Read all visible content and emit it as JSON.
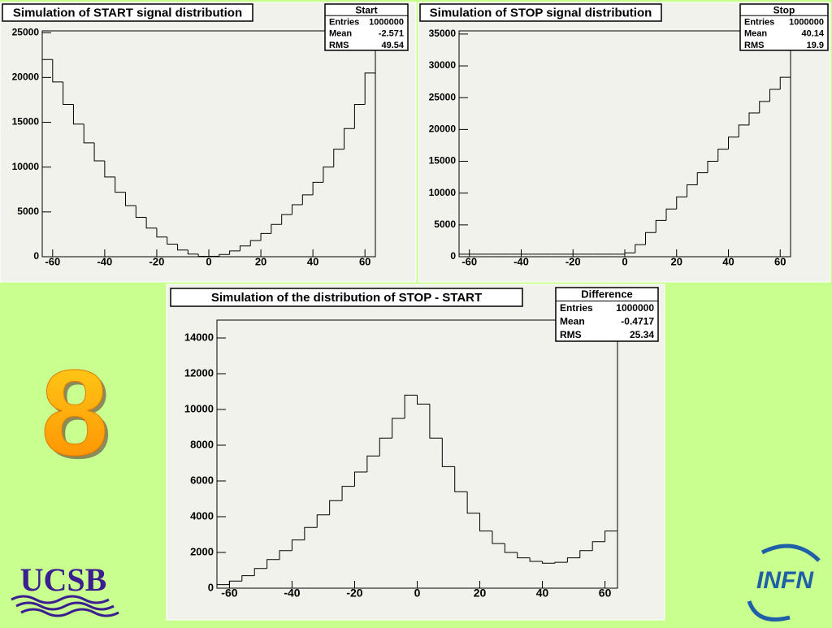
{
  "chart_data": [
    {
      "type": "histogram",
      "title": "Simulation of START signal distribution",
      "stats": {
        "name": "Start",
        "rows": [
          {
            "label": "Entries",
            "value": 1000000
          },
          {
            "label": "Mean",
            "value": -2.571
          },
          {
            "label": "RMS",
            "value": 49.54
          }
        ]
      },
      "bins": [
        -64,
        -60,
        -56,
        -52,
        -48,
        -44,
        -40,
        -36,
        -32,
        -28,
        -24,
        -20,
        -16,
        -12,
        -8,
        -4,
        0,
        4,
        8,
        12,
        16,
        20,
        24,
        28,
        32,
        36,
        40,
        44,
        48,
        52,
        56,
        60,
        64
      ],
      "values": [
        22000,
        19500,
        17000,
        14800,
        12700,
        10700,
        8900,
        7200,
        5700,
        4400,
        3200,
        2200,
        1400,
        750,
        300,
        50,
        50,
        250,
        650,
        1200,
        1800,
        2600,
        3600,
        4700,
        5800,
        6900,
        8300,
        10000,
        12000,
        14300,
        17000,
        20500
      ],
      "color": "#000000",
      "xlim": [
        -64,
        64
      ],
      "xticks": [
        -60,
        -40,
        -20,
        0,
        20,
        40,
        60
      ],
      "ylim": [
        0,
        25200
      ],
      "yticks": [
        0,
        5000,
        10000,
        15000,
        20000,
        25000
      ]
    },
    {
      "type": "histogram",
      "title": "Simulation of STOP signal distribution",
      "stats": {
        "name": "Stop",
        "rows": [
          {
            "label": "Entries",
            "value": 1000000
          },
          {
            "label": "Mean",
            "value": 40.14
          },
          {
            "label": "RMS",
            "value": 19.9
          }
        ]
      },
      "bins": [
        -64,
        -60,
        -56,
        -52,
        -48,
        -44,
        -40,
        -36,
        -32,
        -28,
        -24,
        -20,
        -16,
        -12,
        -8,
        -4,
        0,
        4,
        8,
        12,
        16,
        20,
        24,
        28,
        32,
        36,
        40,
        44,
        48,
        52,
        56,
        60,
        64
      ],
      "values": [
        400,
        400,
        400,
        400,
        400,
        400,
        400,
        400,
        400,
        400,
        400,
        400,
        400,
        400,
        400,
        400,
        600,
        1900,
        3800,
        5700,
        7500,
        9400,
        11300,
        13200,
        15000,
        16900,
        18800,
        20700,
        22600,
        24400,
        26300,
        28200
      ],
      "color": "#000000",
      "xlim": [
        -64,
        64
      ],
      "xticks": [
        -60,
        -40,
        -20,
        0,
        20,
        40,
        60
      ],
      "ylim": [
        0,
        35500
      ],
      "yticks": [
        0,
        5000,
        10000,
        15000,
        20000,
        25000,
        30000,
        35000
      ]
    },
    {
      "type": "histogram",
      "title": "Simulation of the distribution of STOP - START",
      "stats": {
        "name": "Difference",
        "rows": [
          {
            "label": "Entries",
            "value": 1000000
          },
          {
            "label": "Mean",
            "value": -0.4717
          },
          {
            "label": "RMS",
            "value": 25.34
          }
        ]
      },
      "bins": [
        -64,
        -60,
        -56,
        -52,
        -48,
        -44,
        -40,
        -36,
        -32,
        -28,
        -24,
        -20,
        -16,
        -12,
        -8,
        -4,
        0,
        4,
        8,
        12,
        16,
        20,
        24,
        28,
        32,
        36,
        40,
        44,
        48,
        52,
        56,
        60,
        64
      ],
      "values": [
        200,
        400,
        700,
        1100,
        1600,
        2100,
        2700,
        3400,
        4100,
        4900,
        5700,
        6500,
        7400,
        8400,
        9500,
        10800,
        10300,
        8400,
        6800,
        5400,
        4200,
        3200,
        2500,
        2000,
        1700,
        1500,
        1400,
        1450,
        1700,
        2100,
        2600,
        3200
      ],
      "color": "#000000",
      "xlim": [
        -64,
        64
      ],
      "xticks": [
        -60,
        -40,
        -20,
        0,
        20,
        40,
        60
      ],
      "ylim": [
        0,
        15000
      ],
      "yticks": [
        0,
        2000,
        4000,
        6000,
        8000,
        10000,
        12000,
        14000
      ]
    }
  ],
  "slide_number": "8",
  "logos": [
    "UCSB",
    "INFN"
  ]
}
